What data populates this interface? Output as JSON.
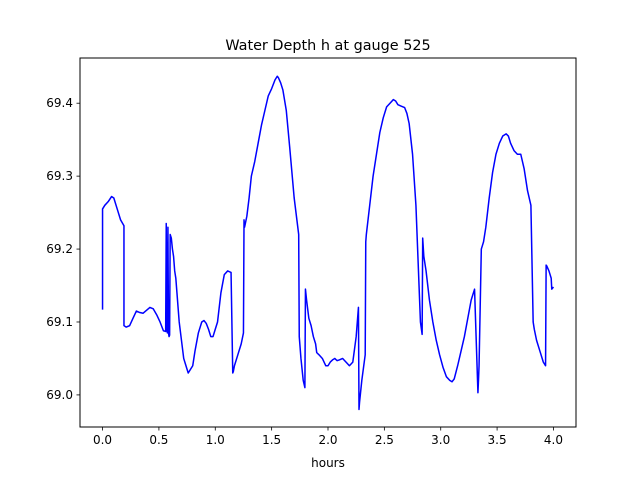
{
  "chart_data": {
    "type": "line",
    "title": "Water Depth h at gauge 525",
    "xlabel": "hours",
    "ylabel": "",
    "xlim": [
      -0.2,
      4.2
    ],
    "ylim": [
      68.956,
      69.462
    ],
    "xticks": [
      0.0,
      0.5,
      1.0,
      1.5,
      2.0,
      2.5,
      3.0,
      3.5,
      4.0
    ],
    "xtick_labels": [
      "0.0",
      "0.5",
      "1.0",
      "1.5",
      "2.0",
      "2.5",
      "3.0",
      "3.5",
      "4.0"
    ],
    "yticks": [
      69.0,
      69.1,
      69.2,
      69.3,
      69.4
    ],
    "ytick_labels": [
      "69.0",
      "69.1",
      "69.2",
      "69.3",
      "69.4"
    ],
    "grid": false,
    "legend": "none",
    "series": [
      {
        "color": "#0000ff",
        "x": [
          0.0,
          0.0,
          0.02,
          0.05,
          0.08,
          0.1,
          0.13,
          0.16,
          0.19,
          0.19,
          0.21,
          0.24,
          0.27,
          0.3,
          0.33,
          0.36,
          0.39,
          0.42,
          0.45,
          0.48,
          0.51,
          0.54,
          0.56,
          0.565,
          0.57,
          0.575,
          0.58,
          0.585,
          0.59,
          0.595,
          0.6,
          0.61,
          0.62,
          0.63,
          0.64,
          0.65,
          0.66,
          0.67,
          0.68,
          0.7,
          0.72,
          0.74,
          0.76,
          0.78,
          0.8,
          0.82,
          0.85,
          0.88,
          0.9,
          0.92,
          0.94,
          0.96,
          0.98,
          1.0,
          1.02,
          1.05,
          1.08,
          1.11,
          1.14,
          1.155,
          1.16,
          1.17,
          1.2,
          1.23,
          1.25,
          1.255,
          1.26,
          1.28,
          1.3,
          1.32,
          1.35,
          1.38,
          1.41,
          1.44,
          1.47,
          1.5,
          1.53,
          1.55,
          1.56,
          1.58,
          1.6,
          1.63,
          1.66,
          1.7,
          1.74,
          1.745,
          1.76,
          1.78,
          1.795,
          1.8,
          1.81,
          1.83,
          1.85,
          1.87,
          1.89,
          1.9,
          1.92,
          1.95,
          1.98,
          2.0,
          2.02,
          2.04,
          2.06,
          2.08,
          2.1,
          2.13,
          2.16,
          2.19,
          2.22,
          2.25,
          2.27,
          2.275,
          2.28,
          2.3,
          2.33,
          2.335,
          2.34,
          2.37,
          2.4,
          2.43,
          2.46,
          2.49,
          2.52,
          2.55,
          2.58,
          2.6,
          2.62,
          2.65,
          2.68,
          2.7,
          2.72,
          2.75,
          2.78,
          2.82,
          2.835,
          2.84,
          2.85,
          2.87,
          2.9,
          2.93,
          2.96,
          2.99,
          3.02,
          3.05,
          3.08,
          3.1,
          3.12,
          3.15,
          3.18,
          3.21,
          3.24,
          3.27,
          3.3,
          3.33,
          3.335,
          3.34,
          3.36,
          3.37,
          3.38,
          3.4,
          3.43,
          3.46,
          3.49,
          3.52,
          3.55,
          3.58,
          3.6,
          3.62,
          3.65,
          3.68,
          3.71,
          3.74,
          3.77,
          3.8,
          3.82,
          3.83,
          3.85,
          3.88,
          3.91,
          3.93,
          3.935,
          3.94,
          3.96,
          3.98,
          3.985,
          4.0
        ],
        "y": [
          69.117,
          69.255,
          69.26,
          69.265,
          69.272,
          69.27,
          69.255,
          69.24,
          69.232,
          69.095,
          69.093,
          69.095,
          69.105,
          69.115,
          69.113,
          69.112,
          69.116,
          69.12,
          69.118,
          69.11,
          69.1,
          69.088,
          69.087,
          69.235,
          69.09,
          69.085,
          69.23,
          69.085,
          69.08,
          69.082,
          69.22,
          69.215,
          69.2,
          69.19,
          69.17,
          69.16,
          69.14,
          69.12,
          69.1,
          69.075,
          69.05,
          69.04,
          69.03,
          69.035,
          69.04,
          69.06,
          69.085,
          69.1,
          69.102,
          69.098,
          69.09,
          69.08,
          69.08,
          69.09,
          69.1,
          69.14,
          69.165,
          69.17,
          69.168,
          69.03,
          69.032,
          69.04,
          69.055,
          69.07,
          69.085,
          69.24,
          69.23,
          69.245,
          69.27,
          69.3,
          69.32,
          69.345,
          69.37,
          69.39,
          69.41,
          69.42,
          69.432,
          69.437,
          69.435,
          69.428,
          69.418,
          69.39,
          69.34,
          69.27,
          69.22,
          69.08,
          69.05,
          69.02,
          69.01,
          69.145,
          69.13,
          69.105,
          69.095,
          69.08,
          69.07,
          69.058,
          69.055,
          69.05,
          69.04,
          69.04,
          69.045,
          69.048,
          69.05,
          69.047,
          69.048,
          69.05,
          69.045,
          69.04,
          69.045,
          69.08,
          69.12,
          68.98,
          68.99,
          69.02,
          69.055,
          69.21,
          69.22,
          69.26,
          69.3,
          69.33,
          69.36,
          69.38,
          69.395,
          69.4,
          69.405,
          69.403,
          69.398,
          69.396,
          69.394,
          69.386,
          69.372,
          69.33,
          69.26,
          69.1,
          69.083,
          69.215,
          69.19,
          69.17,
          69.13,
          69.1,
          69.075,
          69.055,
          69.038,
          69.025,
          69.02,
          69.018,
          69.022,
          69.04,
          69.06,
          69.08,
          69.105,
          69.13,
          69.145,
          69.003,
          69.02,
          69.04,
          69.2,
          69.205,
          69.21,
          69.23,
          69.27,
          69.305,
          69.33,
          69.345,
          69.355,
          69.358,
          69.355,
          69.345,
          69.335,
          69.33,
          69.33,
          69.31,
          69.28,
          69.26,
          69.1,
          69.09,
          69.075,
          69.06,
          69.045,
          69.04,
          69.178,
          69.177,
          69.17,
          69.16,
          69.145,
          69.148
        ]
      }
    ]
  }
}
